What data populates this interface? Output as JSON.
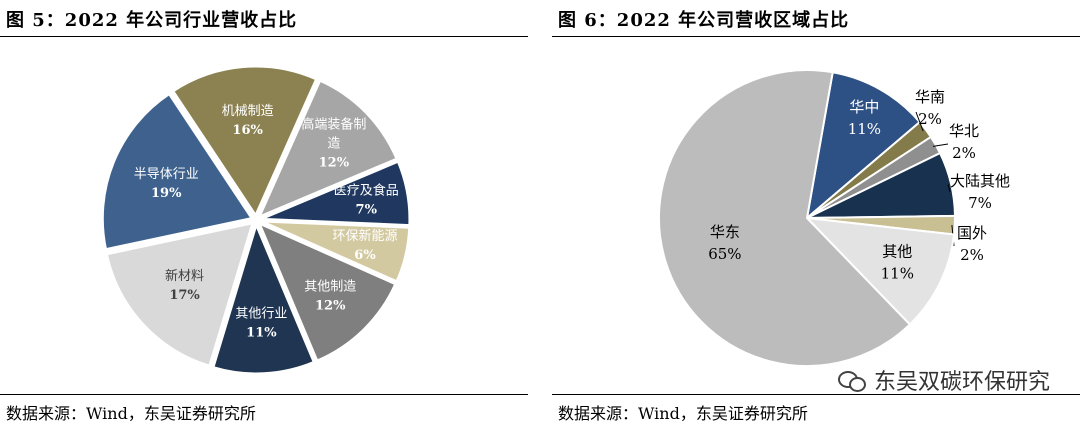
{
  "left": {
    "title": "图 5：2022 年公司行业营收占比",
    "source": "数据来源：Wind，东吴证券研究所"
  },
  "right": {
    "title": "图 6：2022 年公司营收区域占比",
    "source": "数据来源：Wind，东吴证券研究所",
    "watermark": "东吴双碳环保研究"
  },
  "chart_data": [
    {
      "type": "pie",
      "title": "图 5：2022 年公司行业营收占比",
      "legend": "none",
      "series": [
        {
          "label": "高端装备制造",
          "value": 12,
          "value_label": "12%",
          "color": "#a6a6a6",
          "text_color": "#ffffff"
        },
        {
          "label": "医疗及食品",
          "value": 7,
          "value_label": "7%",
          "color": "#203860",
          "text_color": "#ffffff"
        },
        {
          "label": "环保新能源",
          "value": 6,
          "value_label": "6%",
          "color": "#d3c9a1",
          "text_color": "#ffffff"
        },
        {
          "label": "其他制造",
          "value": 12,
          "value_label": "12%",
          "color": "#7f7f7f",
          "text_color": "#ffffff"
        },
        {
          "label": "其他行业",
          "value": 11,
          "value_label": "11%",
          "color": "#1f3552",
          "text_color": "#ffffff"
        },
        {
          "label": "新材料",
          "value": 17,
          "value_label": "17%",
          "color": "#d9d9d9",
          "text_color": "#404040"
        },
        {
          "label": "半导体行业",
          "value": 19,
          "value_label": "19%",
          "color": "#3e628d",
          "text_color": "#ffffff"
        },
        {
          "label": "机械制造",
          "value": 16,
          "value_label": "16%",
          "color": "#8c8251",
          "text_color": "#ffffff"
        }
      ]
    },
    {
      "type": "pie",
      "title": "图 6：2022 年公司营收区域占比",
      "legend": "none",
      "series": [
        {
          "label": "华中",
          "value": 11,
          "value_label": "11%",
          "color": "#2e5185",
          "text_color": "#ffffff"
        },
        {
          "label": "华南",
          "value": 2,
          "value_label": "2%",
          "color": "#847b4b",
          "text_color": "#000000"
        },
        {
          "label": "华北",
          "value": 2,
          "value_label": "2%",
          "color": "#8f8f8f",
          "text_color": "#000000"
        },
        {
          "label": "大陆其他",
          "value": 7,
          "value_label": "7%",
          "color": "#17314f",
          "text_color": "#000000"
        },
        {
          "label": "国外",
          "value": 2,
          "value_label": "2%",
          "color": "#c8bf92",
          "text_color": "#000000"
        },
        {
          "label": "其他",
          "value": 11,
          "value_label": "11%",
          "color": "#e3e3e3",
          "text_color": "#000000"
        },
        {
          "label": "华东",
          "value": 65,
          "value_label": "65%",
          "color": "#bcbcbc",
          "text_color": "#000000"
        }
      ]
    }
  ]
}
